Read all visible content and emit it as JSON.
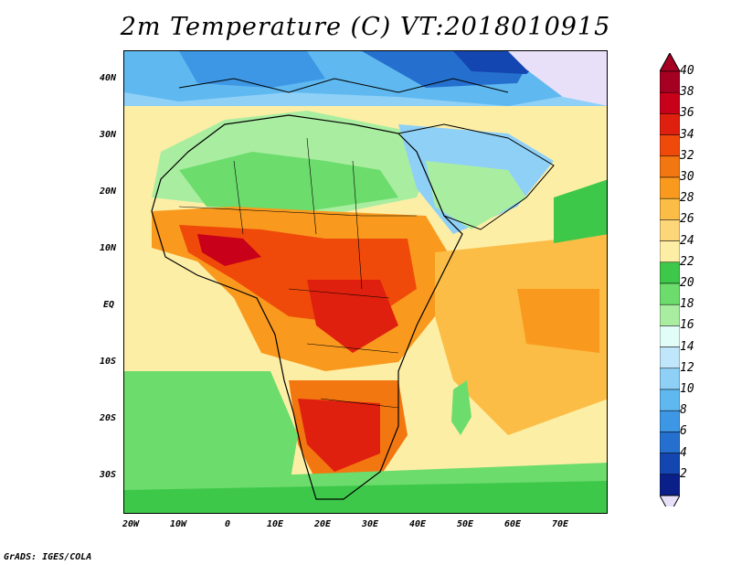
{
  "title": "2m Temperature (C)  VT:2018010915",
  "credit": "GrADS: IGES/COLA",
  "lat_labels": [
    "40N",
    "30N",
    "20N",
    "10N",
    "EQ",
    "10S",
    "20S",
    "30S"
  ],
  "lon_labels": [
    "20W",
    "10W",
    "0",
    "10E",
    "20E",
    "30E",
    "40E",
    "50E",
    "60E",
    "70E"
  ],
  "colorbar": {
    "labels": [
      "40",
      "38",
      "36",
      "34",
      "32",
      "30",
      "28",
      "26",
      "24",
      "22",
      "20",
      "18",
      "16",
      "14",
      "12",
      "10",
      "8",
      "6",
      "4",
      "2"
    ],
    "colors": [
      "#a50021",
      "#c8001a",
      "#e0200e",
      "#f04a0a",
      "#f37710",
      "#f99a1e",
      "#fbbd45",
      "#fdd67a",
      "#fdeea6",
      "#3dc84a",
      "#6cdc6c",
      "#a9eea0",
      "#e2fdf8",
      "#bfe6fb",
      "#8fd0f7",
      "#5fb9f0",
      "#3e97e4",
      "#2570cf",
      "#1346b1",
      "#0a1f88"
    ],
    "top_arrow_color": "#a50021",
    "bottom_arrow_color": "#e8e0f8"
  }
}
